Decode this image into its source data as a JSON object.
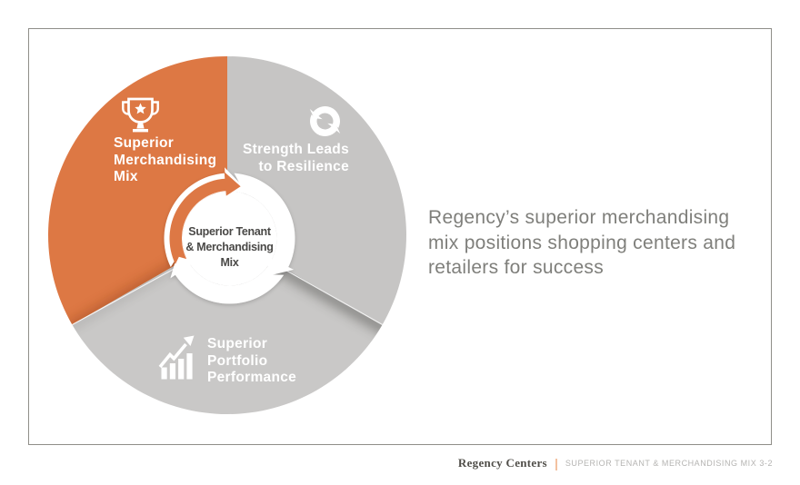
{
  "slide": {
    "diagram": {
      "center": {
        "lines": [
          "Superior Tenant",
          "& Merchandising",
          "Mix"
        ]
      },
      "segments": [
        {
          "name": "superior-merchandising-mix",
          "lines": [
            "Superior",
            "Merchandising",
            "Mix"
          ],
          "color": "#dd7844",
          "icon": "trophy-icon"
        },
        {
          "name": "strength-leads-to-resilience",
          "lines": [
            "Strength Leads",
            "to Resilience"
          ],
          "color": "#c6c5c4",
          "icon": "cycle-arrows-icon"
        },
        {
          "name": "superior-portfolio-performance",
          "lines": [
            "Superior",
            "Portfolio",
            "Performance"
          ],
          "color": "#c9c8c7",
          "icon": "bar-chart-icon"
        }
      ]
    },
    "statement": {
      "lines": [
        "Regency’s superior merchandising",
        "mix positions shopping centers and",
        "retailers for success"
      ]
    },
    "footer": {
      "brand": "Regency Centers",
      "separator": "|",
      "caption": "SUPERIOR TENANT & MERCHANDISING MIX 3-2"
    }
  },
  "colors": {
    "accent_orange": "#dd7844",
    "segment_gray": "#c6c5c4",
    "segment_gray_bottom": "#c9c8c7",
    "statement_text": "#7f7f7b",
    "footer_caption": "#b5b4b2",
    "frame_border": "#8f8e89"
  }
}
